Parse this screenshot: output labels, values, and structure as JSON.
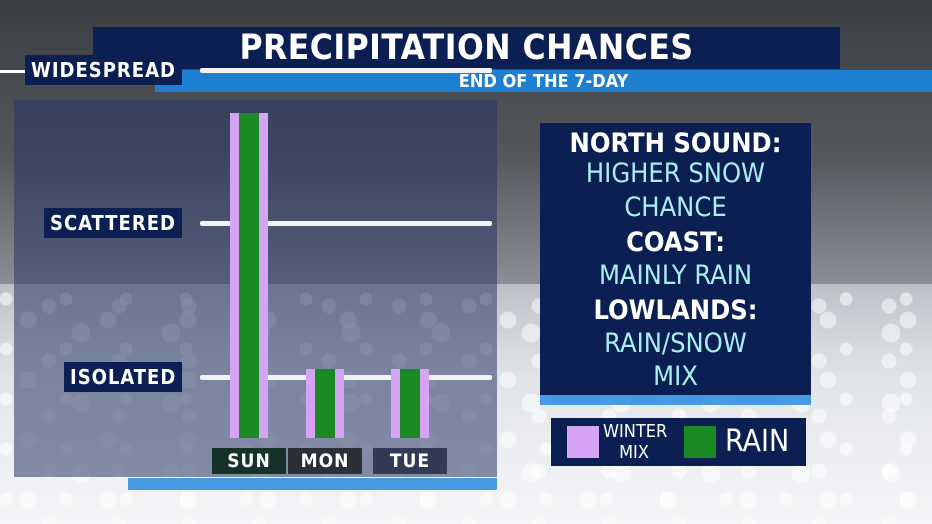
{
  "header": {
    "title": "PRECIPITATION CHANCES",
    "subtitle": "END OF THE 7-DAY"
  },
  "chart_data": {
    "type": "bar",
    "categories": [
      "SUN",
      "MON",
      "TUE"
    ],
    "y_levels": [
      "WIDESPREAD",
      "SCATTERED",
      "ISOLATED"
    ],
    "series": [
      {
        "name": "WINTER MIX",
        "color": "#d6a3f5"
      },
      {
        "name": "RAIN",
        "color": "#1c8a24"
      }
    ],
    "values": [
      2.72,
      1.05,
      1.05
    ],
    "ylim": [
      0.6,
      3.0
    ],
    "level_values": [
      3,
      2,
      1
    ],
    "day_label_colors": [
      "#15322a",
      "#2c2f38",
      "#333a55"
    ],
    "legend_placement": "bottom-right"
  },
  "info": {
    "north_head": "NORTH SOUND:",
    "north_line1": "HIGHER SNOW",
    "north_line2": "CHANCE",
    "coast_head": "COAST:",
    "coast_line1": "MAINLY RAIN",
    "lowlands_head": "LOWLANDS:",
    "lowlands_line1": "RAIN/SNOW",
    "lowlands_line2": "MIX"
  },
  "legend": {
    "winter_mix_line1": "WINTER",
    "winter_mix_line2": "MIX",
    "rain": "RAIN",
    "winter_color": "#d6a3f5",
    "rain_color": "#1c8a24"
  }
}
